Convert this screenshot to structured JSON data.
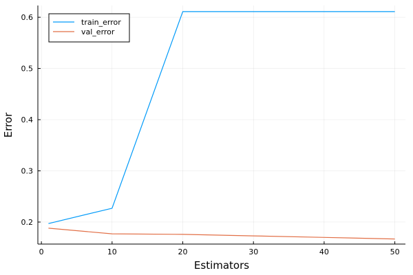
{
  "chart_data": {
    "type": "line",
    "xlabel": "Estimators",
    "ylabel": "Error",
    "xlim": [
      -0.5,
      51.5
    ],
    "ylim": [
      0.157,
      0.623
    ],
    "x_ticks": [
      0,
      10,
      20,
      30,
      40,
      50
    ],
    "y_ticks": [
      0.2,
      0.3,
      0.4,
      0.5,
      0.6
    ],
    "grid": true,
    "legend_position": "top-left",
    "series": [
      {
        "name": "train_error",
        "color": "#009af9",
        "x": [
          1,
          10,
          20,
          30,
          40,
          50
        ],
        "y": [
          0.197,
          0.227,
          0.611,
          0.611,
          0.611,
          0.611
        ]
      },
      {
        "name": "val_error",
        "color": "#e26f46",
        "x": [
          1,
          10,
          20,
          30,
          40,
          50
        ],
        "y": [
          0.188,
          0.177,
          0.176,
          0.173,
          0.17,
          0.167
        ]
      }
    ]
  }
}
